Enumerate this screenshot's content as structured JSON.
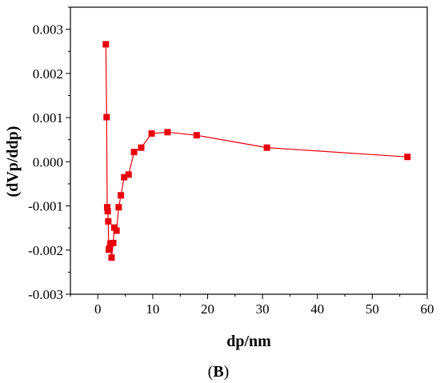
{
  "chart_data": {
    "type": "line",
    "xlabel": "dp/nm",
    "ylabel": "(dVp/ddp)",
    "caption_open": "(",
    "caption_letter": "B",
    "caption_close": ")",
    "xlim": [
      -5,
      60
    ],
    "ylim": [
      -0.003,
      0.0035
    ],
    "xticks": [
      {
        "value": 0,
        "label": "0"
      },
      {
        "value": 10,
        "label": "10"
      },
      {
        "value": 20,
        "label": "20"
      },
      {
        "value": 30,
        "label": "30"
      },
      {
        "value": 40,
        "label": "40"
      },
      {
        "value": 50,
        "label": "50"
      },
      {
        "value": 60,
        "label": "60"
      }
    ],
    "yticks": [
      {
        "value": -0.003,
        "label": "-0.003"
      },
      {
        "value": -0.002,
        "label": "-0.002"
      },
      {
        "value": -0.001,
        "label": "-0.001"
      },
      {
        "value": 0.0,
        "label": "0.000"
      },
      {
        "value": 0.001,
        "label": "0.001"
      },
      {
        "value": 0.002,
        "label": "0.002"
      },
      {
        "value": 0.003,
        "label": "0.003"
      }
    ],
    "series": [
      {
        "color": "#e8000b",
        "marker": "square",
        "x": [
          1.45,
          1.6,
          1.7,
          1.8,
          1.9,
          2.0,
          2.1,
          2.3,
          2.5,
          2.8,
          3.0,
          3.4,
          3.8,
          4.2,
          4.8,
          5.6,
          6.6,
          7.9,
          9.8,
          12.7,
          18.0,
          30.8,
          56.4
        ],
        "y": [
          0.00266,
          0.00101,
          -0.00103,
          -0.00112,
          -0.00135,
          -0.00199,
          -0.00196,
          -0.00185,
          -0.00217,
          -0.00184,
          -0.00149,
          -0.00156,
          -0.00103,
          -0.00076,
          -0.00035,
          -0.00029,
          0.00022,
          0.00032,
          0.00064,
          0.00067,
          0.0006,
          0.00032,
          0.00011
        ]
      }
    ],
    "grid": false,
    "legend": "none"
  }
}
